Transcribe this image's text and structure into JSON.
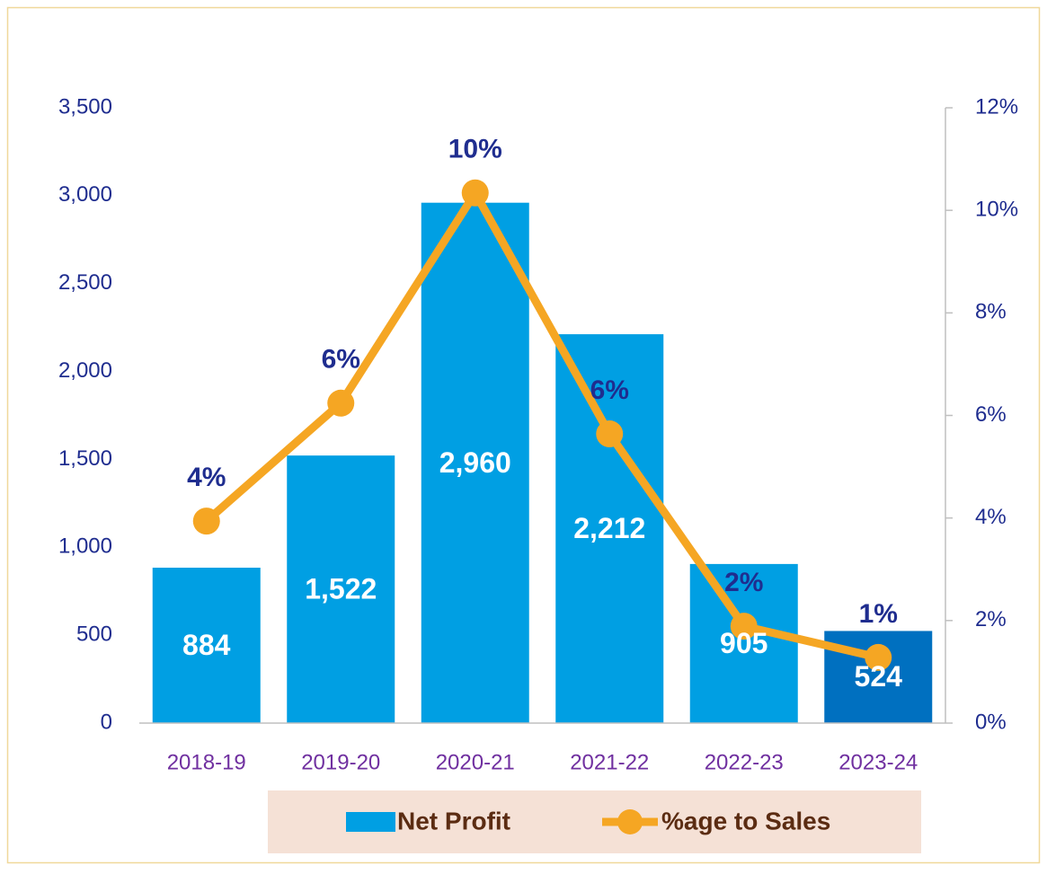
{
  "chart_data": {
    "type": "bar_line",
    "categories": [
      "2018-19",
      "2019-20",
      "2020-21",
      "2021-22",
      "2022-23",
      "2023-24"
    ],
    "series": [
      {
        "name": "Net Profit",
        "type": "bar",
        "color": "#009fe3",
        "colors": [
          "#009fe3",
          "#009fe3",
          "#009fe3",
          "#009fe3",
          "#009fe3",
          "#0070c0"
        ],
        "values": [
          884,
          1522,
          2960,
          2212,
          905,
          524
        ],
        "value_labels": [
          "884",
          "1,522",
          "2,960",
          "2,212",
          "905",
          "524"
        ]
      },
      {
        "name": "%age to Sales",
        "type": "line",
        "axis": "y2",
        "color": "#f5a623",
        "values": [
          3.94,
          6.24,
          10.34,
          5.64,
          1.89,
          1.28
        ],
        "value_labels": [
          "4%",
          "6%",
          "10%",
          "6%",
          "2%",
          "1%"
        ]
      }
    ],
    "ylim": [
      0,
      3500
    ],
    "yticks": [
      0,
      500,
      {
        "value": 1000,
        "label": "1,000"
      },
      {
        "value": 1500,
        "label": "1,500"
      },
      {
        "value": 2000,
        "label": "2,000"
      },
      {
        "value": 2500,
        "label": "2,500"
      },
      {
        "value": 3000,
        "label": "3,000"
      },
      {
        "value": 3500,
        "label": "3,500"
      }
    ],
    "y2lim": [
      0,
      12
    ],
    "y2ticks": [
      {
        "value": 0,
        "label": "0%"
      },
      {
        "value": 2,
        "label": "2%"
      },
      {
        "value": 4,
        "label": "4%"
      },
      {
        "value": 6,
        "label": "6%"
      },
      {
        "value": 8,
        "label": "8%"
      },
      {
        "value": 10,
        "label": "10%"
      },
      {
        "value": 12,
        "label": "12%"
      }
    ],
    "legend": "bottom"
  }
}
